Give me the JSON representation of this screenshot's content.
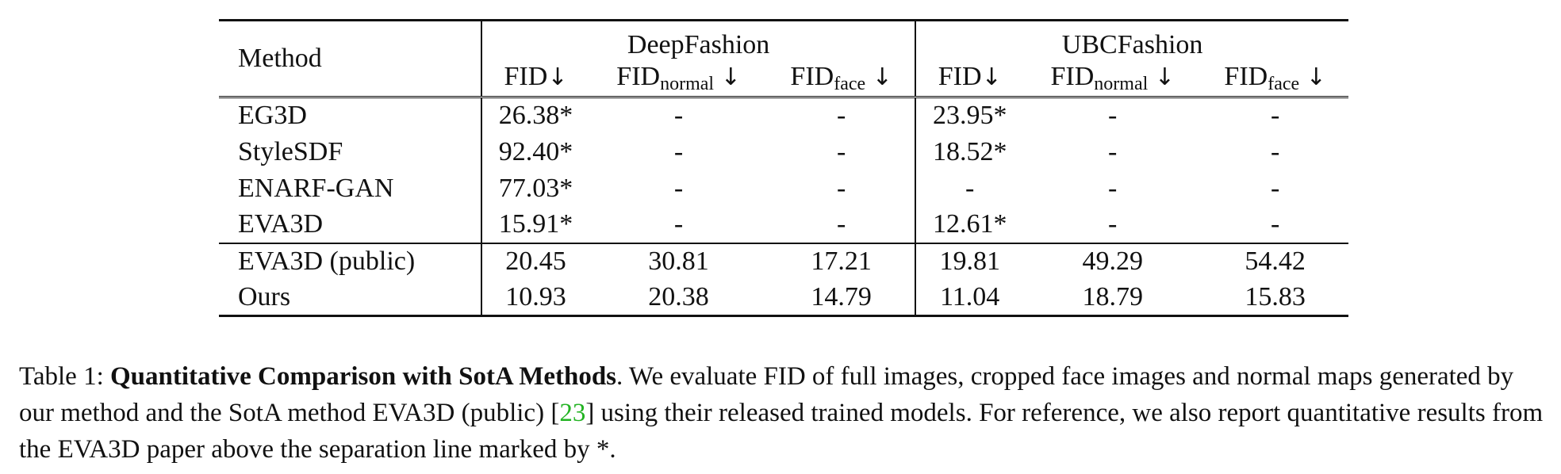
{
  "table": {
    "method_header": "Method",
    "groups": [
      "DeepFashion",
      "UBCFashion"
    ],
    "metric_base": "FID",
    "metric_subs": [
      "",
      "normal",
      "face"
    ],
    "arrow": "↓",
    "rows_upper": [
      {
        "method": "EG3D",
        "values": [
          "26.38*",
          "-",
          "-",
          "23.95*",
          "-",
          "-"
        ]
      },
      {
        "method": "StyleSDF",
        "values": [
          "92.40*",
          "-",
          "-",
          "18.52*",
          "-",
          "-"
        ]
      },
      {
        "method": "ENARF-GAN",
        "values": [
          "77.03*",
          "-",
          "-",
          "-",
          "-",
          "-"
        ]
      },
      {
        "method": "EVA3D",
        "values": [
          "15.91*",
          "-",
          "-",
          "12.61*",
          "-",
          "-"
        ]
      }
    ],
    "rows_lower": [
      {
        "method": "EVA3D (public)",
        "values": [
          "20.45",
          "30.81",
          "17.21",
          "19.81",
          "49.29",
          "54.42"
        ],
        "bold": false
      },
      {
        "method": "Ours",
        "values": [
          "10.93",
          "20.38",
          "14.79",
          "11.04",
          "18.79",
          "15.83"
        ],
        "bold": true
      }
    ]
  },
  "caption": {
    "label": "Table 1:",
    "title": "Quantitative Comparison with SotA Methods",
    "text_a": ". We evaluate FID of full images, cropped face images and normal maps generated by our method and the SotA method EVA3D (public) [",
    "ref": "23",
    "text_b": "] using their released trained models. For reference, we also report quantitative results from the EVA3D paper above the separation line marked by *."
  }
}
